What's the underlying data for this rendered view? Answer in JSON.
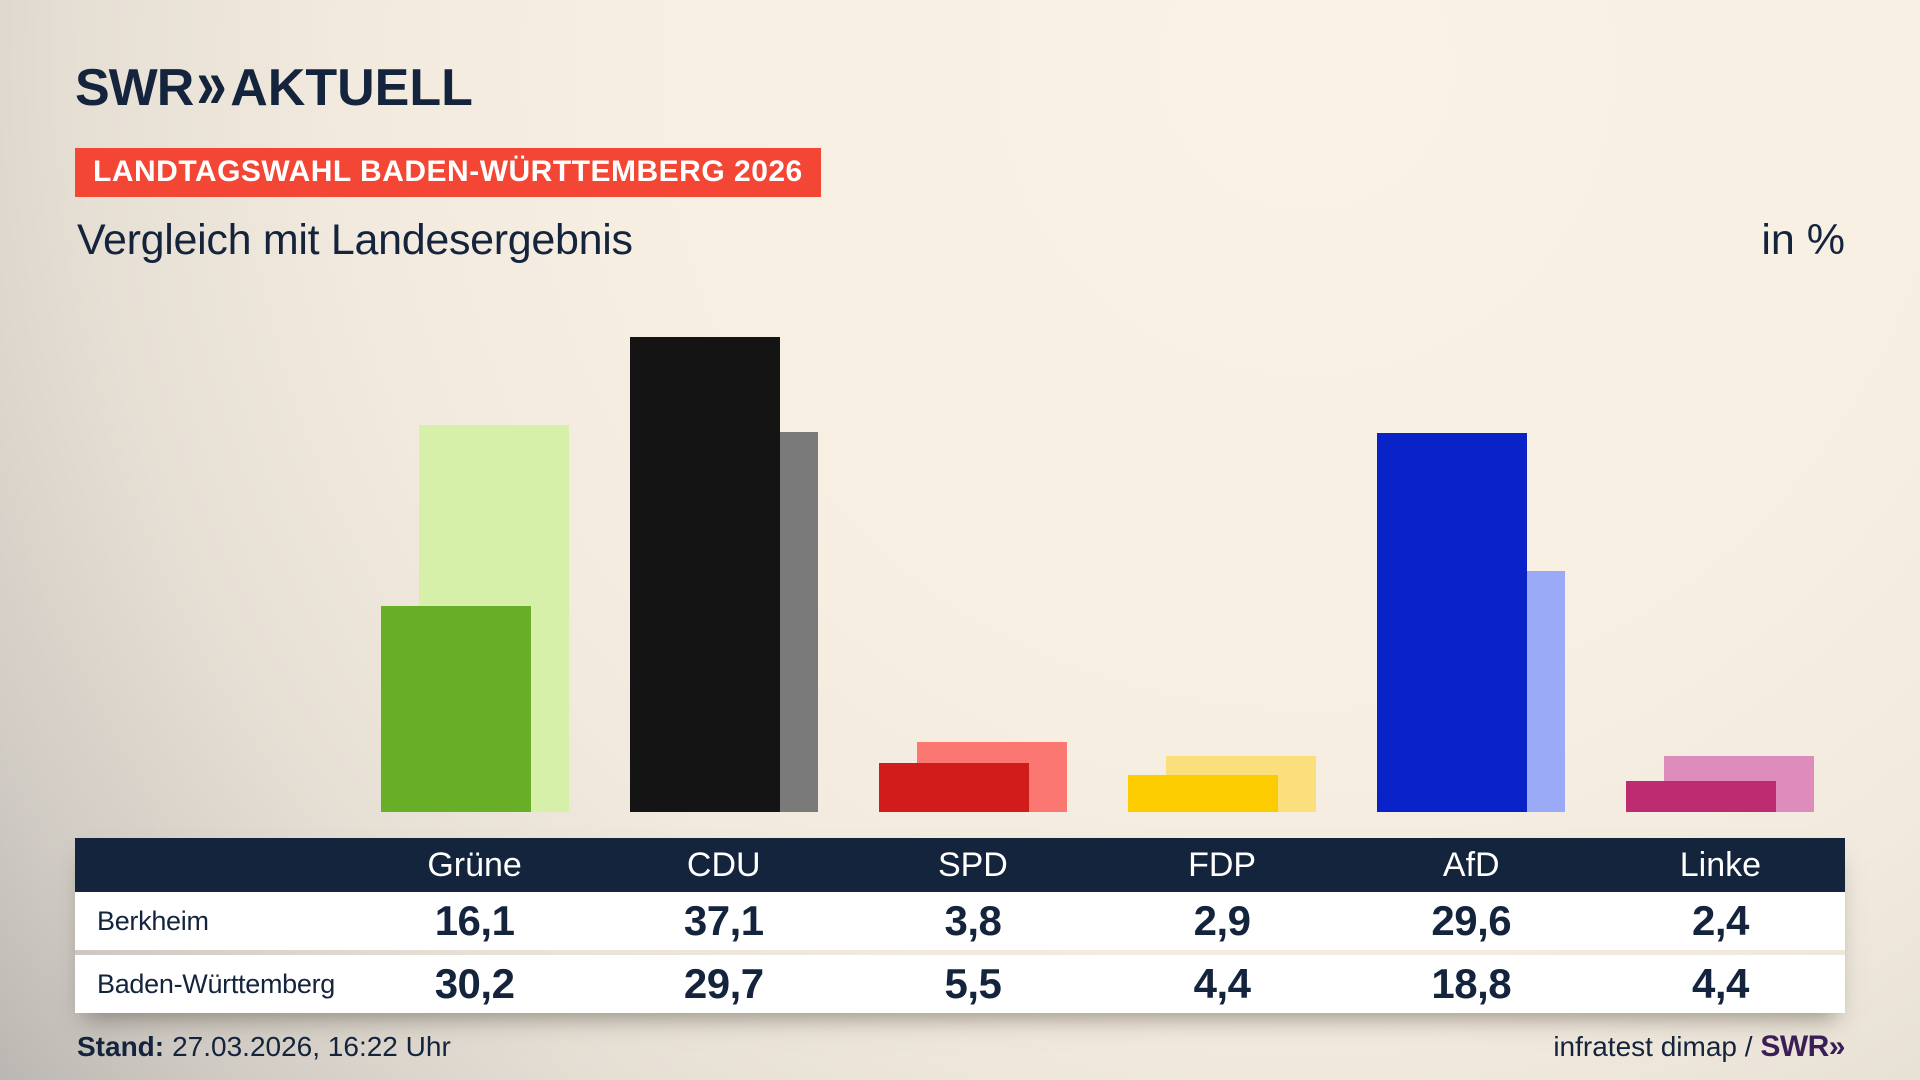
{
  "brand": {
    "logo_swr": "SWR",
    "logo_chevron": "»",
    "logo_name": "AKTUELL"
  },
  "badge": {
    "label": "LANDTAGSWAHL BADEN-WÜRTTEMBERG 2026",
    "bg": "#f34634",
    "text_color": "#ffffff"
  },
  "title": "Vergleich mit Landesergebnis",
  "unit_label": "in %",
  "chart_data": {
    "type": "bar",
    "title": "Vergleich mit Landesergebnis",
    "unit": "%",
    "categories": [
      "Grüne",
      "CDU",
      "SPD",
      "FDP",
      "AfD",
      "Linke"
    ],
    "series": [
      {
        "name": "Berkheim",
        "values": [
          16.1,
          37.1,
          3.8,
          2.9,
          29.6,
          2.4
        ]
      },
      {
        "name": "Baden-Württemberg",
        "values": [
          30.2,
          29.7,
          5.5,
          4.4,
          18.8,
          4.4
        ]
      }
    ],
    "colors": {
      "Grüne": {
        "front": "#68af27",
        "back": "#d6f0aa"
      },
      "CDU": {
        "front": "#141414",
        "back": "#7a7a7a"
      },
      "SPD": {
        "front": "#d21c1c",
        "back": "#fa7871"
      },
      "FDP": {
        "front": "#fccb00",
        "back": "#fbdf7d"
      },
      "AfD": {
        "front": "#0a23c8",
        "back": "#9aaaf7"
      },
      "Linke": {
        "front": "#bd2c71",
        "back": "#dd8cbb"
      }
    },
    "ylim": [
      0,
      40
    ],
    "axes_visible": false,
    "grid": false,
    "legend_position": "table-below",
    "bar_style": "front bar = Berkheim (saturated, offset left), back bar = Baden-Württemberg (light tint, offset right), shared baseline"
  },
  "table": {
    "header": [
      "",
      "Grüne",
      "CDU",
      "SPD",
      "FDP",
      "AfD",
      "Linke"
    ],
    "rows": [
      {
        "label": "Berkheim",
        "values": [
          "16,1",
          "37,1",
          "3,8",
          "2,9",
          "29,6",
          "2,4"
        ]
      },
      {
        "label": "Baden-Württemberg",
        "values": [
          "30,2",
          "29,7",
          "5,5",
          "4,4",
          "18,8",
          "4,4"
        ]
      }
    ]
  },
  "footer": {
    "stand_label": "Stand:",
    "stand_value": "27.03.2026, 16:22 Uhr",
    "source": "infratest dimap / ",
    "brand": "SWR»"
  },
  "colors": {
    "navy_text": "#14243d",
    "table_header_bg": "#14243d",
    "background_cream": "#f7efe2",
    "background_gray_corner": "#b2afab",
    "badge_red": "#f34634",
    "footer_brand_purple": "#3b1e55",
    "row_bg": "#ffffff"
  }
}
